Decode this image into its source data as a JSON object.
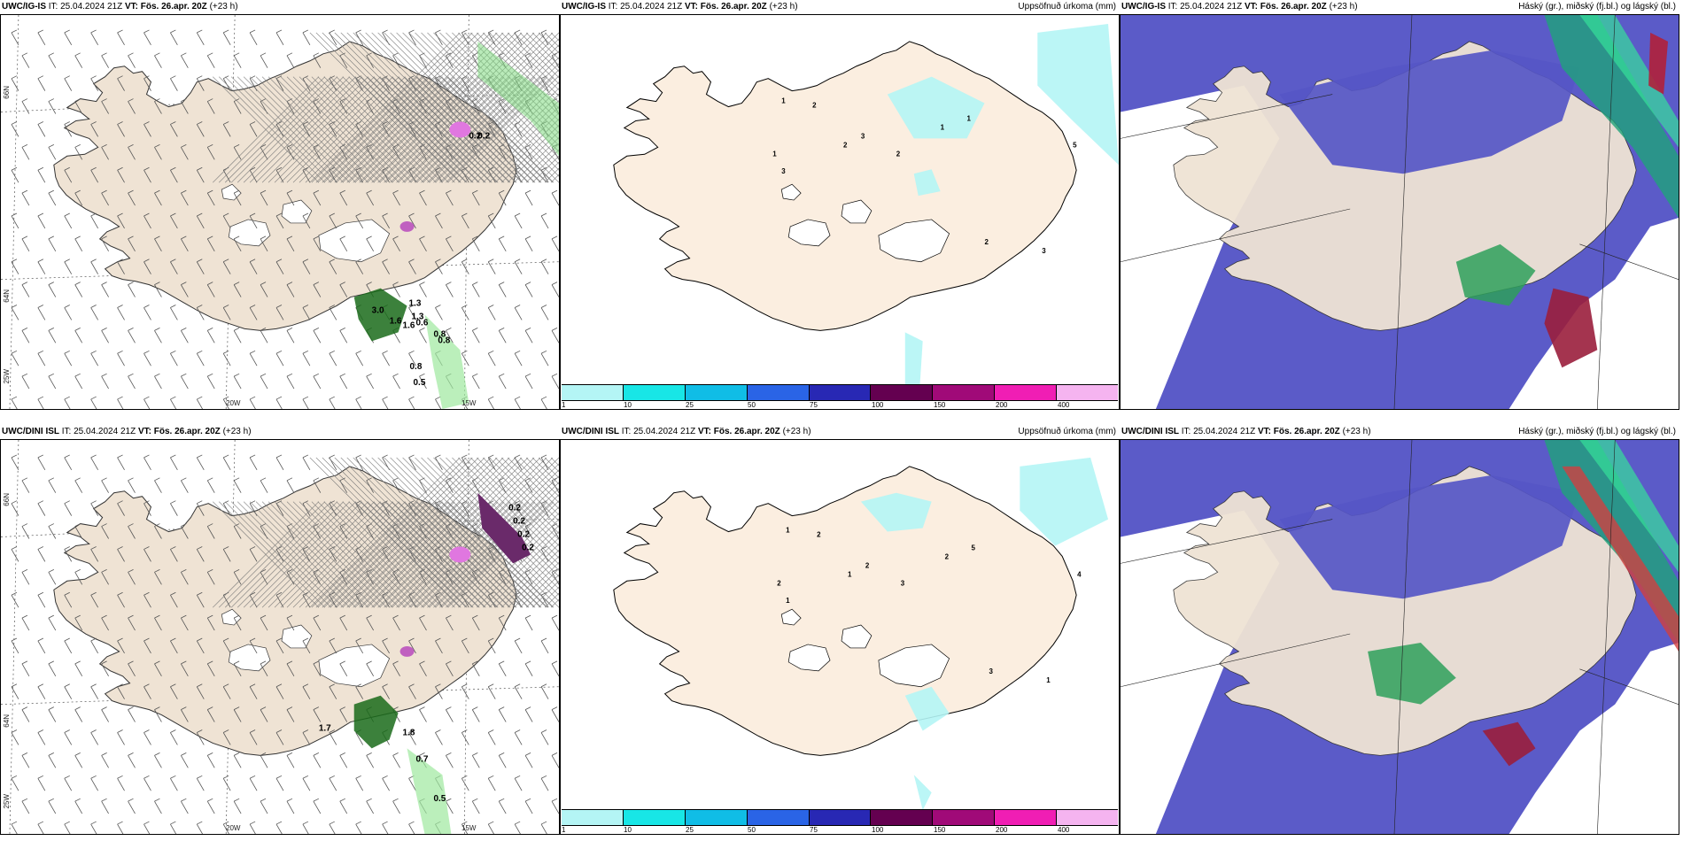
{
  "panels": [
    {
      "model": "UWC/IG-IS",
      "it": "IT: 25.04.2024 21Z",
      "vt": "VT: Fös. 26.apr. 20Z",
      "lead": "(+23 h)",
      "right_title": ""
    },
    {
      "model": "UWC/IG-IS",
      "it": "IT: 25.04.2024 21Z",
      "vt": "VT: Fös. 26.apr. 20Z",
      "lead": "(+23 h)",
      "right_title": "Uppsöfnuð úrkoma (mm)"
    },
    {
      "model": "UWC/IG-IS",
      "it": "IT: 25.04.2024 21Z",
      "vt": "VT: Fös. 26.apr. 20Z",
      "lead": "(+23 h)",
      "right_title": "Háský (gr.), miðský (fj.bl.) og lágský (bl.)"
    },
    {
      "model": "UWC/DINI ISL",
      "it": "IT: 25.04.2024 21Z",
      "vt": "VT: Fös. 26.apr. 20Z",
      "lead": "(+23 h)",
      "right_title": ""
    },
    {
      "model": "UWC/DINI ISL",
      "it": "IT: 25.04.2024 21Z",
      "vt": "VT: Fös. 26.apr. 20Z",
      "lead": "(+23 h)",
      "right_title": "Uppsöfnuð úrkoma (mm)"
    },
    {
      "model": "UWC/DINI ISL",
      "it": "IT: 25.04.2024 21Z",
      "vt": "VT: Fös. 26.apr. 20Z",
      "lead": "(+23 h)",
      "right_title": "Háský (gr.), miðský (fj.bl.) og lágský (bl.)"
    }
  ],
  "axes": {
    "lon1": "20W",
    "lon2": "15W",
    "lat1": "66N",
    "lat2": "64N",
    "lat3": "25W"
  },
  "colorbar": {
    "labels": [
      "1",
      "10",
      "25",
      "50",
      "75",
      "100",
      "150",
      "200",
      "400"
    ],
    "colors": [
      "#b4f5f5",
      "#18e6e6",
      "#10bde6",
      "#2a64e6",
      "#2828b4",
      "#640050",
      "#a00a78",
      "#f01eb4",
      "#f5b4f0"
    ]
  },
  "wind_values_top": [
    "3.0",
    "1.6",
    "1.6",
    "0.8",
    "0.8",
    "0.6",
    "0.8",
    "0.5",
    "1.3",
    "1.3",
    "0.2",
    "0.2"
  ],
  "wind_values_bottom": [
    "1.7",
    "0.7",
    "0.5",
    "1.8",
    "0.2",
    "0.2",
    "0.2",
    "0.2"
  ],
  "precip_labels_top": [
    "1",
    "2",
    "3",
    "2",
    "1",
    "3",
    "2",
    "1",
    "1",
    "5",
    "3",
    "2"
  ],
  "precip_labels_bottom": [
    "1",
    "2",
    "2",
    "1",
    "2",
    "1",
    "3",
    "2",
    "5",
    "4",
    "1",
    "3"
  ],
  "colors": {
    "land": "#efe3d4",
    "ocean": "#ffffff",
    "cloud_low": "#5b5bc8",
    "cloud_mid": "#7f7fe0",
    "precip": "#b4f5f5",
    "wind_green": "#1a6b1a"
  }
}
